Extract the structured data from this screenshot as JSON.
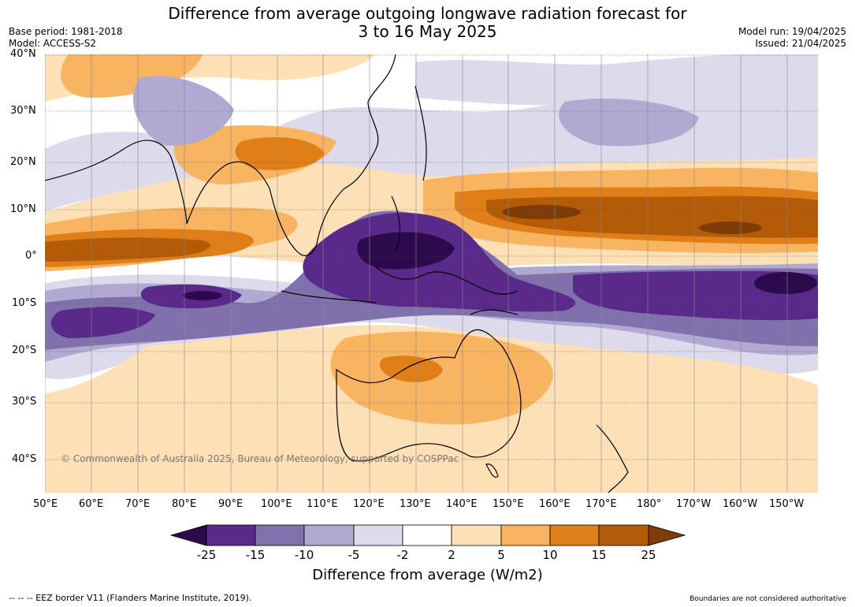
{
  "header": {
    "title_line1": "Difference from average outgoing longwave radiation forecast for",
    "title_line2": "3 to 16 May 2025",
    "base_period": "Base period: 1981-2018",
    "model": "Model: ACCESS-S2",
    "model_run": "Model run: 19/04/2025",
    "issued": "Issued: 21/04/2025"
  },
  "map": {
    "lat_labels": [
      "40°N",
      "30°N",
      "20°N",
      "10°N",
      "0°",
      "10°S",
      "20°S",
      "30°S",
      "40°S"
    ],
    "lon_labels": [
      "50°E",
      "60°E",
      "70°E",
      "80°E",
      "90°E",
      "100°E",
      "110°E",
      "120°E",
      "130°E",
      "140°E",
      "150°E",
      "160°E",
      "170°E",
      "180°",
      "170°W",
      "160°W",
      "150°W"
    ],
    "copyright": "© Commonwealth of Australia 2025, Bureau of Meteorology, supported by COSPPac"
  },
  "colorbar": {
    "ticks": [
      "-25",
      "-15",
      "-10",
      "-5",
      "-2",
      "2",
      "5",
      "10",
      "15",
      "25"
    ],
    "colors": [
      "#2d0a4e",
      "#5a2a8a",
      "#8071ad",
      "#b1a9d1",
      "#dcdaeb",
      "#ffffff",
      "#fde0b6",
      "#f8b461",
      "#e07f17",
      "#b45b08",
      "#7f3b08"
    ],
    "label": "Difference from average (W/m2)"
  },
  "footer": {
    "eez": "-- -- -- EEZ border V11 (Flanders Marine Institute, 2019).",
    "disclaimer": "Boundaries are not considered authoritative"
  }
}
